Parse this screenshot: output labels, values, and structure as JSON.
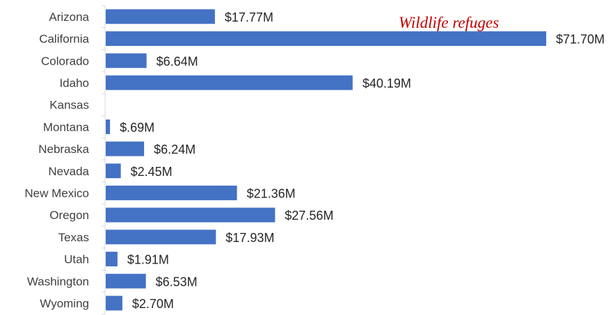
{
  "chart_data": {
    "type": "bar",
    "orientation": "horizontal",
    "title": "Wildlife refuges",
    "categories": [
      "Arizona",
      "California",
      "Colorado",
      "Idaho",
      "Kansas",
      "Montana",
      "Nebraska",
      "Nevada",
      "New Mexico",
      "Oregon",
      "Texas",
      "Utah",
      "Washington",
      "Wyoming"
    ],
    "values": [
      17.77,
      71.7,
      6.64,
      40.19,
      0,
      0.69,
      6.24,
      2.45,
      21.36,
      27.56,
      17.93,
      1.91,
      6.53,
      2.7
    ],
    "value_labels": [
      "$17.77M",
      "$71.70M",
      "$6.64M",
      "$40.19M",
      "",
      "$.69M",
      "$6.24M",
      "$2.45M",
      "$21.36M",
      "$27.56M",
      "$17.93M",
      "$1.91M",
      "$6.53M",
      "$2.70M"
    ],
    "unit": "$M",
    "xlim": [
      0,
      71.7
    ],
    "grid": false,
    "bar_color": "#4472c4",
    "title_color": "#c00000"
  }
}
